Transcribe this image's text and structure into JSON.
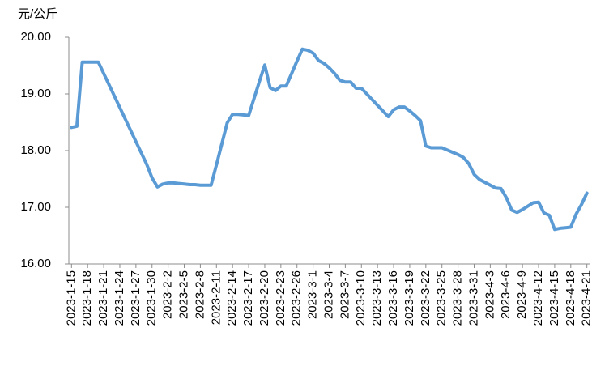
{
  "chart_data": {
    "type": "line",
    "y_axis_label": "元/公斤",
    "categories": [
      "2023-1-15",
      null,
      null,
      "2023-1-18",
      null,
      null,
      "2023-1-21",
      null,
      null,
      "2023-1-24",
      null,
      null,
      "2023-1-27",
      null,
      null,
      "2023-1-30",
      null,
      null,
      "2023-2-2",
      null,
      null,
      "2023-2-5",
      null,
      null,
      "2023-2-8",
      null,
      null,
      "2023-2-11",
      null,
      null,
      "2023-2-14",
      null,
      null,
      "2023-2-17",
      null,
      null,
      "2023-2-20",
      null,
      null,
      "2023-2-23",
      null,
      null,
      "2023-2-26",
      null,
      null,
      "2023-3-1",
      null,
      null,
      "2023-3-4",
      null,
      null,
      "2023-3-7",
      null,
      null,
      "2023-3-10",
      null,
      null,
      "2023-3-13",
      null,
      null,
      "2023-3-16",
      null,
      null,
      "2023-3-19",
      null,
      null,
      "2023-3-22",
      null,
      null,
      "2023-3-25",
      null,
      null,
      "2023-3-28",
      null,
      null,
      "2023-3-31",
      null,
      null,
      "2023-4-3",
      null,
      null,
      "2023-4-6",
      null,
      null,
      "2023-4-9",
      null,
      null,
      "2023-4-12",
      null,
      null,
      "2023-4-15",
      null,
      null,
      "2023-4-18",
      null,
      null,
      "2023-4-21"
    ],
    "values": [
      18.41,
      18.43,
      19.56,
      19.56,
      19.56,
      19.56,
      19.36,
      19.16,
      18.96,
      18.76,
      18.56,
      18.36,
      18.16,
      17.96,
      17.76,
      17.52,
      17.36,
      17.41,
      17.43,
      17.43,
      17.42,
      17.41,
      17.4,
      17.4,
      17.39,
      17.39,
      17.39,
      17.75,
      18.12,
      18.49,
      18.64,
      18.64,
      18.63,
      18.62,
      18.92,
      19.22,
      19.51,
      19.11,
      19.06,
      19.14,
      19.14,
      19.36,
      19.58,
      19.79,
      19.77,
      19.72,
      19.59,
      19.54,
      19.46,
      19.36,
      19.24,
      19.21,
      19.21,
      19.1,
      19.1,
      19.0,
      18.9,
      18.8,
      18.7,
      18.6,
      18.72,
      18.77,
      18.77,
      18.7,
      18.62,
      18.53,
      18.08,
      18.05,
      18.05,
      18.05,
      18.01,
      17.97,
      17.93,
      17.88,
      17.77,
      17.58,
      17.49,
      17.44,
      17.39,
      17.34,
      17.33,
      17.17,
      16.95,
      16.91,
      16.96,
      17.02,
      17.08,
      17.09,
      16.9,
      16.86,
      16.61,
      16.63,
      16.64,
      16.65,
      16.88,
      17.05,
      17.25
    ],
    "color": "#5b9bd5",
    "ylim": [
      16,
      20
    ],
    "yticks": [
      {
        "value": 16,
        "label": "16.00"
      },
      {
        "value": 17,
        "label": "17.00"
      },
      {
        "value": 18,
        "label": "18.00"
      },
      {
        "value": 19,
        "label": "19.00"
      },
      {
        "value": 20,
        "label": "20.00"
      }
    ],
    "grid": false
  }
}
